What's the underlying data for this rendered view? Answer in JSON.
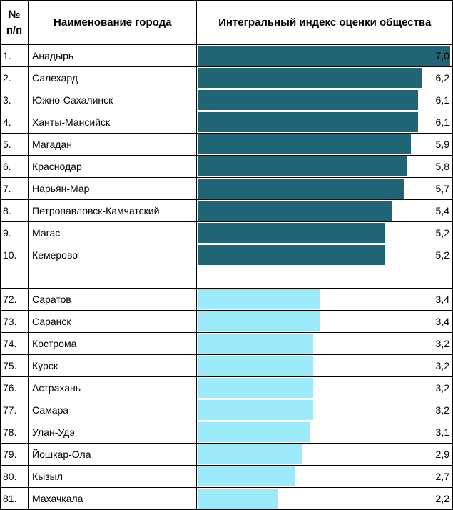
{
  "chart_data": {
    "type": "bar",
    "orientation": "horizontal",
    "headers": {
      "num_line1": "№",
      "num_line2": "п/п",
      "city": "Наименование города",
      "index": "Интегральный индекс оценки общества"
    },
    "xlim": [
      0,
      7.0
    ],
    "colors": {
      "top": "#1f6575",
      "bottom": "#9ceaf9"
    },
    "top": [
      {
        "num": "1.",
        "city": "Анадырь",
        "value": 7.0,
        "label": "7,0"
      },
      {
        "num": "2.",
        "city": "Салехард",
        "value": 6.2,
        "label": "6,2"
      },
      {
        "num": "3.",
        "city": "Южно-Сахалинск",
        "value": 6.1,
        "label": "6,1"
      },
      {
        "num": "4.",
        "city": "Ханты-Мансийск",
        "value": 6.1,
        "label": "6,1"
      },
      {
        "num": "5.",
        "city": "Магадан",
        "value": 5.9,
        "label": "5,9"
      },
      {
        "num": "6.",
        "city": "Краснодар",
        "value": 5.8,
        "label": "5,8"
      },
      {
        "num": "7.",
        "city": "Нарьян-Мар",
        "value": 5.7,
        "label": "5,7"
      },
      {
        "num": "8.",
        "city": "Петропавловск-Камчатский",
        "value": 5.4,
        "label": "5,4"
      },
      {
        "num": "9.",
        "city": "Магас",
        "value": 5.2,
        "label": "5,2"
      },
      {
        "num": "10.",
        "city": "Кемерово",
        "value": 5.2,
        "label": "5,2"
      }
    ],
    "bottom": [
      {
        "num": "72.",
        "city": "Саратов",
        "value": 3.4,
        "label": "3,4"
      },
      {
        "num": "73.",
        "city": "Саранск",
        "value": 3.4,
        "label": "3,4"
      },
      {
        "num": "74.",
        "city": "Кострома",
        "value": 3.2,
        "label": "3,2"
      },
      {
        "num": "75.",
        "city": "Курск",
        "value": 3.2,
        "label": "3,2"
      },
      {
        "num": "76.",
        "city": "Астрахань",
        "value": 3.2,
        "label": "3,2"
      },
      {
        "num": "77.",
        "city": "Самара",
        "value": 3.2,
        "label": "3,2"
      },
      {
        "num": "78.",
        "city": "Улан-Удэ",
        "value": 3.1,
        "label": "3,1"
      },
      {
        "num": "79.",
        "city": "Йошкар-Ола",
        "value": 2.9,
        "label": "2,9"
      },
      {
        "num": "80.",
        "city": "Кызыл",
        "value": 2.7,
        "label": "2,7"
      },
      {
        "num": "81.",
        "city": "Махачкала",
        "value": 2.2,
        "label": "2,2"
      }
    ]
  }
}
